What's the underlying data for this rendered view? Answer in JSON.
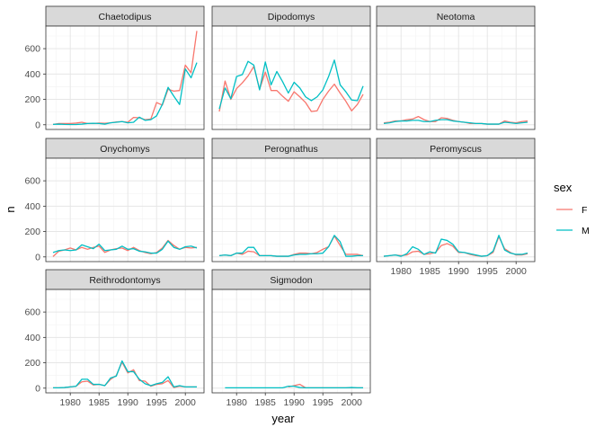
{
  "chart_data": {
    "type": "line",
    "xlabel": "year",
    "ylabel": "n",
    "xlim": [
      1975.75,
      2003.25
    ],
    "ylim": [
      -37,
      778
    ],
    "x_ticks": [
      1980,
      1985,
      1990,
      1995,
      2000
    ],
    "x_tick_labels": [
      "1980",
      "1985",
      "1990",
      "1995",
      "2000"
    ],
    "y_ticks": [
      0,
      200,
      400,
      600
    ],
    "y_tick_labels": [
      "0",
      "200",
      "400",
      "600"
    ],
    "grid": true,
    "legend": {
      "title": "sex",
      "position": "right",
      "entries": [
        {
          "label": "F",
          "color": "#F8766D"
        },
        {
          "label": "M",
          "color": "#00BFC4"
        }
      ]
    },
    "x": [
      1977,
      1978,
      1979,
      1980,
      1981,
      1982,
      1983,
      1984,
      1985,
      1986,
      1987,
      1988,
      1989,
      1990,
      1991,
      1992,
      1993,
      1994,
      1995,
      1996,
      1997,
      1998,
      1999,
      2000,
      2001,
      2002
    ],
    "panels": [
      {
        "name": "Chaetodipus",
        "series": [
          {
            "name": "F",
            "values": [
              3,
              10,
              10,
              10,
              13,
              20,
              10,
              10,
              13,
              12,
              15,
              22,
              25,
              20,
              58,
              55,
              40,
              45,
              175,
              155,
              280,
              265,
              270,
              470,
              410,
              740
            ]
          },
          {
            "name": "M",
            "values": [
              3,
              5,
              3,
              2,
              2,
              5,
              10,
              12,
              10,
              5,
              15,
              20,
              25,
              15,
              20,
              60,
              35,
              40,
              70,
              160,
              295,
              225,
              160,
              440,
              370,
              490
            ]
          }
        ]
      },
      {
        "name": "Dipodomys",
        "series": [
          {
            "name": "F",
            "values": [
              105,
              345,
              200,
              285,
              330,
              385,
              460,
              280,
              415,
              270,
              270,
              225,
              185,
              260,
              220,
              175,
              105,
              110,
              200,
              265,
              320,
              250,
              185,
              110,
              160,
              240
            ]
          },
          {
            "name": "M",
            "values": [
              125,
              290,
              205,
              380,
              395,
              500,
              470,
              275,
              495,
              315,
              420,
              340,
              250,
              335,
              290,
              220,
              190,
              220,
              275,
              380,
              510,
              315,
              260,
              195,
              190,
              305
            ]
          }
        ]
      },
      {
        "name": "Neotoma",
        "series": [
          {
            "name": "F",
            "values": [
              15,
              20,
              30,
              30,
              40,
              45,
              65,
              40,
              25,
              25,
              55,
              50,
              35,
              25,
              20,
              10,
              10,
              10,
              5,
              5,
              5,
              30,
              20,
              15,
              25,
              30
            ]
          },
          {
            "name": "M",
            "values": [
              10,
              15,
              25,
              30,
              30,
              35,
              35,
              25,
              25,
              35,
              40,
              40,
              30,
              25,
              20,
              15,
              10,
              10,
              5,
              5,
              5,
              20,
              15,
              10,
              15,
              20
            ]
          }
        ]
      },
      {
        "name": "Onychomys",
        "series": [
          {
            "name": "F",
            "values": [
              3,
              45,
              55,
              70,
              55,
              75,
              60,
              75,
              85,
              35,
              55,
              65,
              70,
              50,
              75,
              50,
              35,
              25,
              35,
              70,
              130,
              90,
              60,
              75,
              70,
              75
            ]
          },
          {
            "name": "M",
            "values": [
              35,
              50,
              55,
              50,
              55,
              95,
              80,
              65,
              100,
              50,
              55,
              60,
              85,
              60,
              65,
              45,
              40,
              30,
              30,
              60,
              125,
              75,
              60,
              80,
              85,
              70
            ]
          }
        ]
      },
      {
        "name": "Perognathus",
        "series": [
          {
            "name": "F",
            "values": [
              10,
              15,
              10,
              30,
              20,
              45,
              40,
              10,
              10,
              10,
              5,
              5,
              5,
              20,
              30,
              30,
              25,
              35,
              60,
              80,
              165,
              90,
              20,
              20,
              20,
              10
            ]
          },
          {
            "name": "M",
            "values": [
              10,
              15,
              10,
              30,
              30,
              75,
              75,
              10,
              10,
              10,
              5,
              5,
              5,
              15,
              20,
              20,
              25,
              25,
              30,
              80,
              170,
              120,
              5,
              5,
              10,
              10
            ]
          }
        ]
      },
      {
        "name": "Peromyscus",
        "series": [
          {
            "name": "F",
            "values": [
              5,
              10,
              15,
              10,
              15,
              40,
              45,
              20,
              25,
              35,
              90,
              105,
              85,
              35,
              35,
              20,
              10,
              5,
              10,
              35,
              160,
              65,
              35,
              15,
              15,
              25
            ]
          },
          {
            "name": "M",
            "values": [
              5,
              10,
              15,
              5,
              25,
              80,
              60,
              20,
              40,
              30,
              140,
              130,
              100,
              40,
              35,
              25,
              15,
              5,
              10,
              45,
              170,
              55,
              30,
              20,
              20,
              30
            ]
          }
        ]
      },
      {
        "name": "Reithrodontomys",
        "series": [
          {
            "name": "F",
            "values": [
              3,
              3,
              5,
              10,
              15,
              50,
              55,
              25,
              30,
              20,
              70,
              100,
              205,
              120,
              145,
              60,
              55,
              15,
              30,
              35,
              60,
              5,
              15,
              10,
              10,
              10
            ]
          },
          {
            "name": "M",
            "values": [
              3,
              3,
              5,
              10,
              15,
              70,
              70,
              30,
              30,
              20,
              80,
              95,
              215,
              130,
              130,
              70,
              35,
              20,
              35,
              45,
              90,
              10,
              20,
              10,
              10,
              10
            ]
          }
        ]
      },
      {
        "name": "Sigmodon",
        "series": [
          {
            "name": "F",
            "values": [
              null,
              null,
              null,
              null,
              null,
              null,
              null,
              null,
              null,
              null,
              null,
              null,
              10,
              20,
              30,
              3,
              3,
              3,
              3,
              3,
              3,
              3,
              3,
              3,
              3,
              3
            ]
          },
          {
            "name": "M",
            "values": [
              null,
              3,
              3,
              3,
              3,
              3,
              3,
              3,
              3,
              3,
              3,
              3,
              15,
              15,
              5,
              3,
              3,
              3,
              3,
              3,
              3,
              3,
              3,
              5,
              3,
              3
            ]
          }
        ]
      }
    ]
  }
}
